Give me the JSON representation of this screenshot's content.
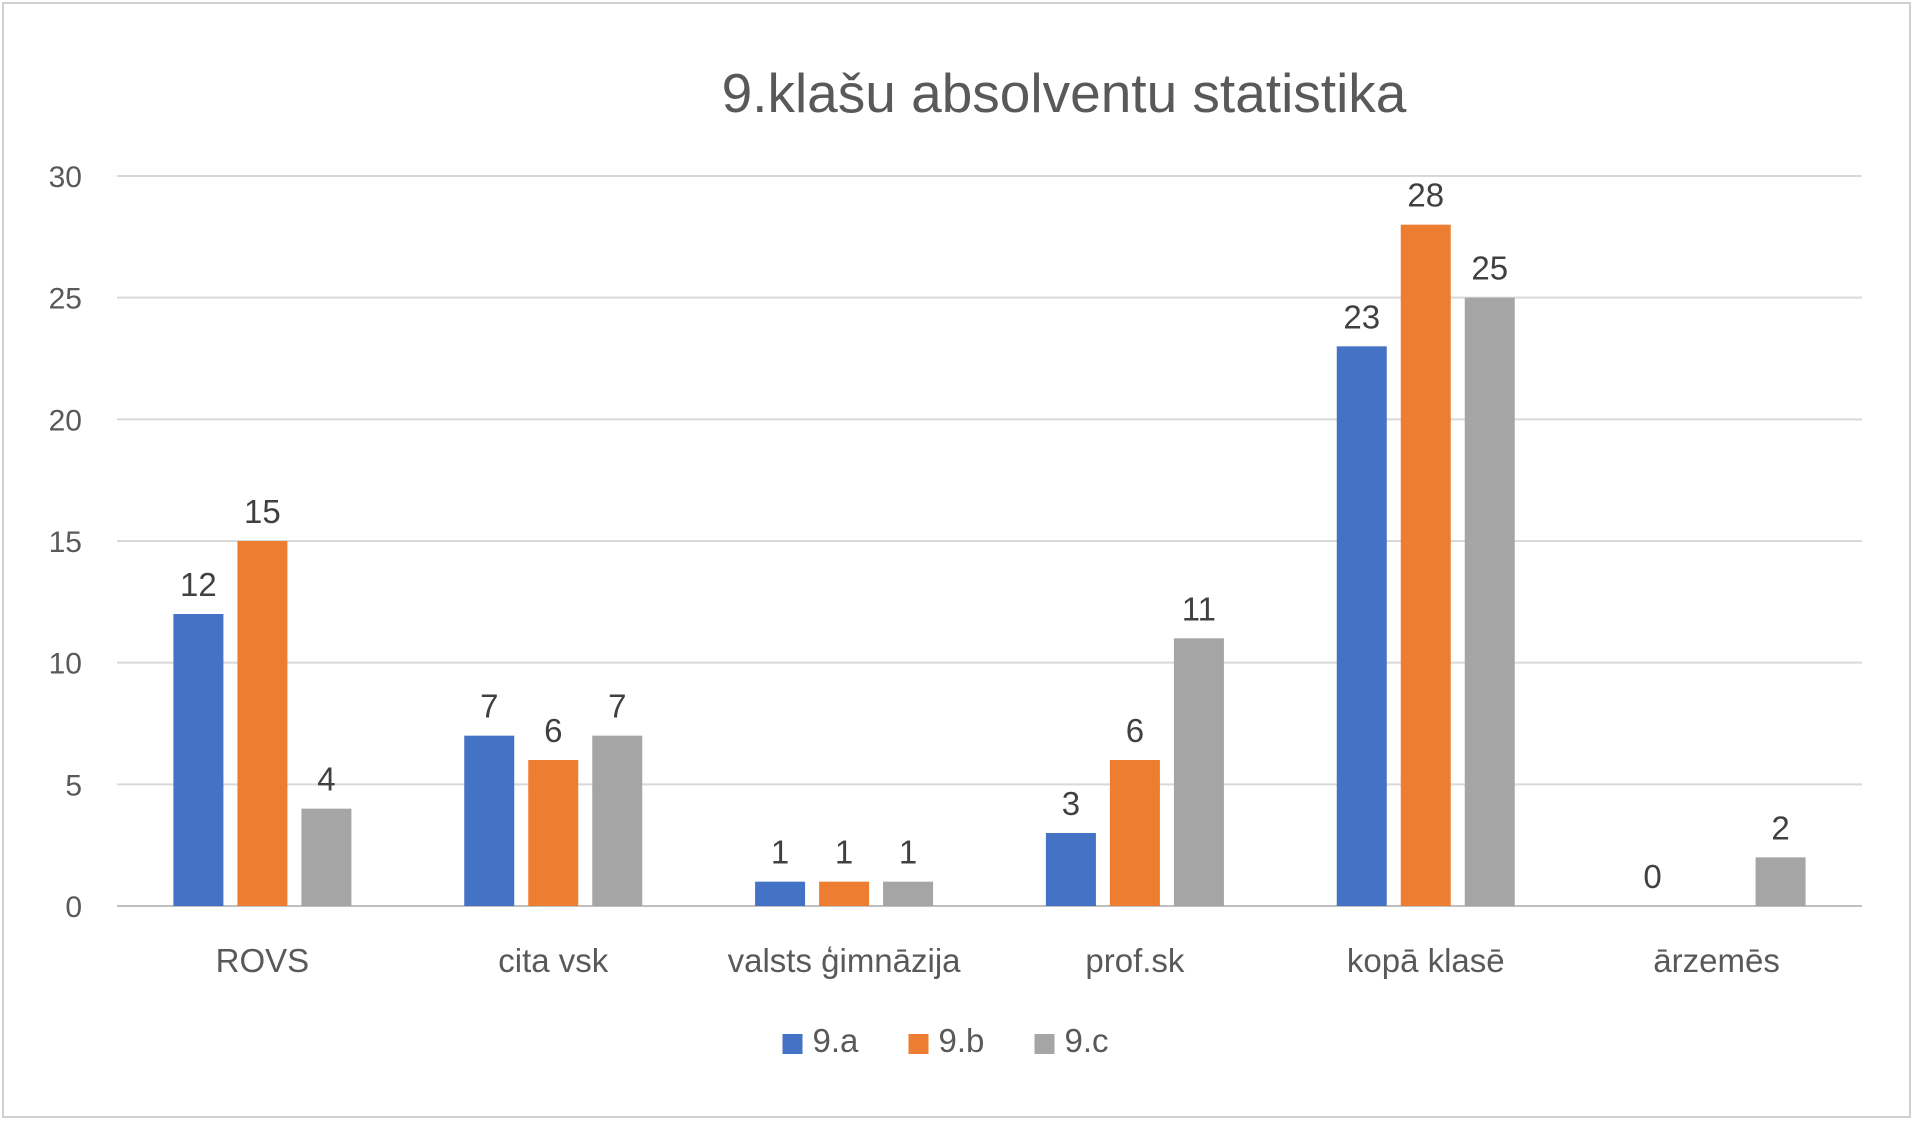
{
  "chart_data": {
    "type": "bar",
    "title": "9.klašu absolventu statistika",
    "xlabel": "",
    "ylabel": "",
    "categories": [
      "ROVS",
      "cita vsk",
      "valsts ģimnāzija",
      "prof.sk",
      "kopā klasē",
      "ārzemēs"
    ],
    "series": [
      {
        "name": "9.a",
        "color": "#4472C4",
        "values": [
          12,
          7,
          1,
          3,
          23,
          0
        ]
      },
      {
        "name": "9.b",
        "color": "#ED7D31",
        "values": [
          15,
          6,
          1,
          6,
          28,
          null
        ]
      },
      {
        "name": "9.c",
        "color": "#A5A5A5",
        "values": [
          4,
          7,
          1,
          11,
          25,
          2
        ]
      }
    ],
    "ylim": [
      0,
      30
    ],
    "yticks": [
      0,
      5,
      10,
      15,
      20,
      25,
      30
    ],
    "grid": true,
    "legend": "bottom",
    "data_labels": true
  }
}
